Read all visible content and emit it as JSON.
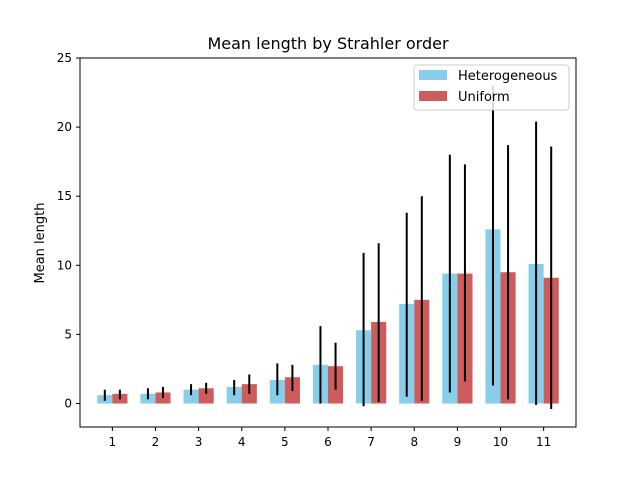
{
  "chart_data": {
    "type": "bar",
    "title": "Mean length by Strahler order",
    "xlabel": "",
    "ylabel": "Mean length",
    "categories": [
      "1",
      "2",
      "3",
      "4",
      "5",
      "6",
      "7",
      "8",
      "9",
      "10",
      "11"
    ],
    "ylim": [
      -1.7,
      25
    ],
    "yticks": [
      0,
      5,
      10,
      15,
      20,
      25
    ],
    "grid": false,
    "legend_position": "top-right",
    "series": [
      {
        "name": "Heterogeneous",
        "color": "#87ceeb",
        "values": [
          0.6,
          0.7,
          1.0,
          1.2,
          1.7,
          2.8,
          5.3,
          7.2,
          9.4,
          12.6,
          10.1
        ],
        "err_low": [
          0.2,
          0.3,
          0.6,
          0.6,
          0.6,
          0.0,
          -0.2,
          0.5,
          0.8,
          1.3,
          -0.1
        ],
        "err_high": [
          1.0,
          1.1,
          1.4,
          1.7,
          2.9,
          5.6,
          10.9,
          13.8,
          18.0,
          23.0,
          20.4
        ]
      },
      {
        "name": "Uniform",
        "color": "#cd5c5c",
        "values": [
          0.7,
          0.8,
          1.1,
          1.4,
          1.9,
          2.7,
          5.9,
          7.5,
          9.4,
          9.5,
          9.1
        ],
        "err_low": [
          0.3,
          0.4,
          0.7,
          0.7,
          0.9,
          1.0,
          0.1,
          0.2,
          1.6,
          0.3,
          -0.4
        ],
        "err_high": [
          1.0,
          1.2,
          1.5,
          2.1,
          2.8,
          4.4,
          11.6,
          15.0,
          17.3,
          18.7,
          18.6
        ]
      }
    ]
  }
}
